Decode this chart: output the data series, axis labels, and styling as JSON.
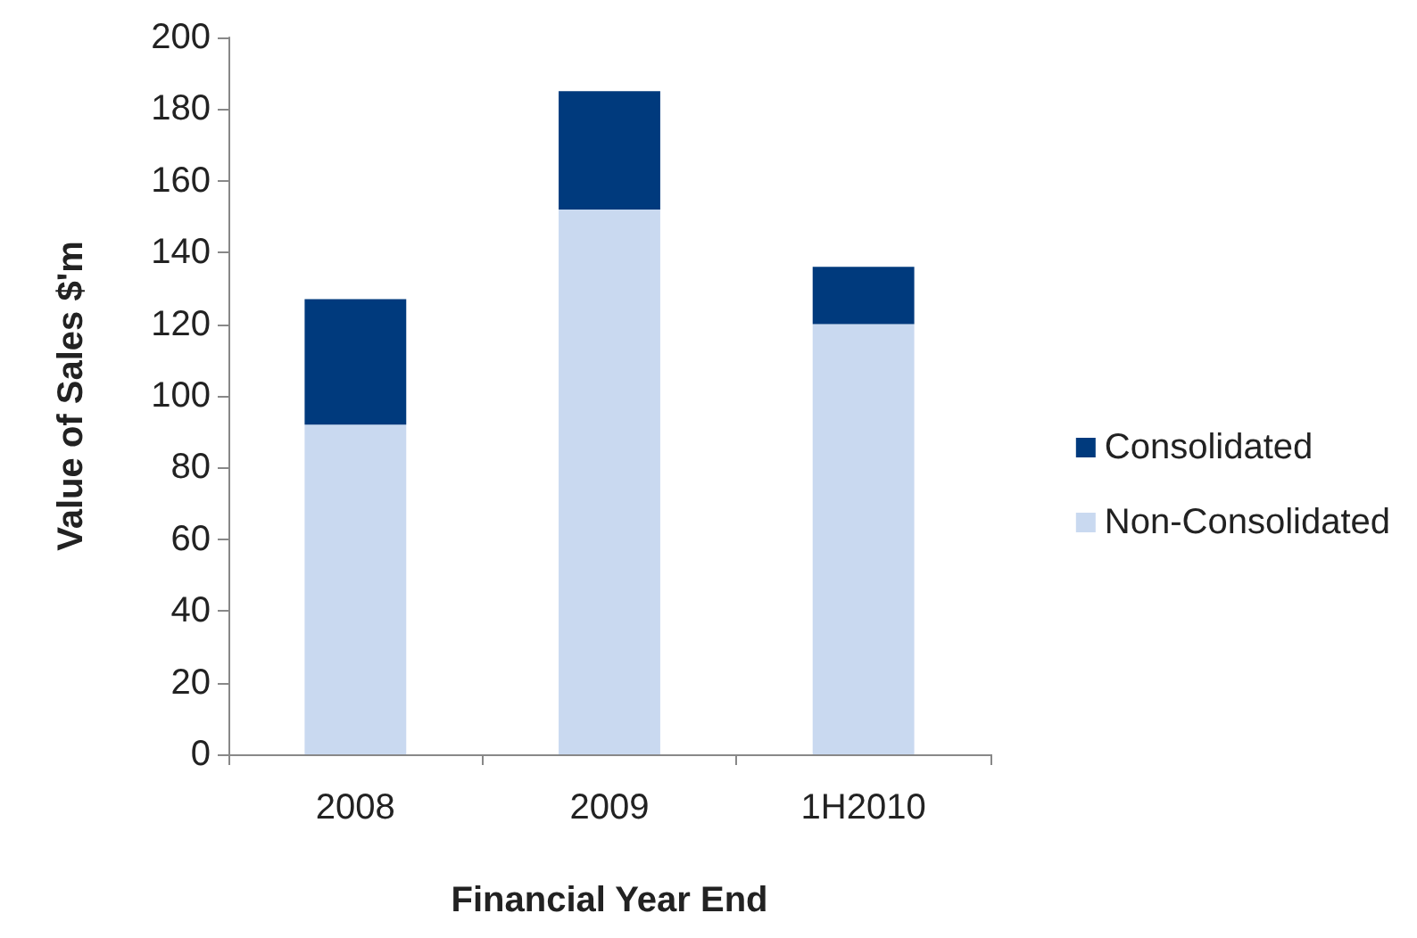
{
  "chart_data": {
    "type": "bar",
    "xlabel": "Financial Year End",
    "ylabel": "Value of Sales $'m",
    "categories": [
      "2008",
      "2009",
      "1H2010"
    ],
    "series": [
      {
        "name": "Non-Consolidated",
        "color": "#c9d9f0",
        "values": [
          92,
          152,
          120
        ]
      },
      {
        "name": "Consolidated",
        "color": "#003a7d",
        "values": [
          35,
          33,
          16
        ]
      }
    ],
    "stacked": true,
    "ylim": [
      0,
      200
    ],
    "yticks": [
      0,
      20,
      40,
      60,
      80,
      100,
      120,
      140,
      160,
      180,
      200
    ],
    "grid": false,
    "legend": "right"
  }
}
